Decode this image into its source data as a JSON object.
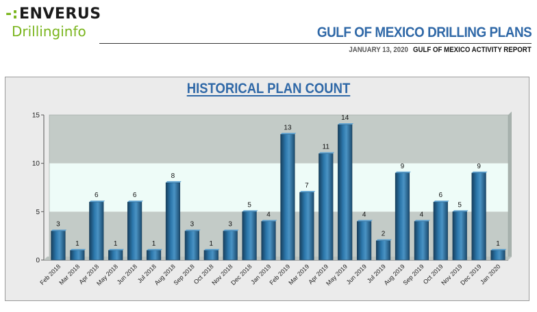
{
  "header": {
    "logo_line1": "ENVERUS",
    "logo_line2": "Drillinginfo",
    "title": "GULF OF MEXICO DRILLING PLANS",
    "date": "JANUARY 13, 2020",
    "report_name": "GULF OF MEXICO ACTIVITY REPORT"
  },
  "colors": {
    "brand_green": "#7ab51d",
    "title_blue": "#2f68a7",
    "bar_blue": "#2a6e9e",
    "band_dark": "#c3cbc7",
    "band_light": "#eefcf8"
  },
  "chart_data": {
    "type": "bar",
    "title": "HISTORICAL PLAN COUNT",
    "xlabel": "",
    "ylabel": "",
    "ylim": [
      0,
      15
    ],
    "yticks": [
      0,
      5,
      10,
      15
    ],
    "categories": [
      "Feb 2018",
      "Mar 2018",
      "Apr 2018",
      "May 2018",
      "Jun 2018",
      "Jul 2018",
      "Aug 2018",
      "Sep 2018",
      "Oct 2018",
      "Nov 2018",
      "Dec 2018",
      "Jan 2019",
      "Feb 2019",
      "Mar 2019",
      "Apr 2019",
      "May 2019",
      "Jun 2019",
      "Jul 2019",
      "Aug 2019",
      "Sep 2019",
      "Oct 2019",
      "Nov 2019",
      "Dec 2019",
      "Jan 2020"
    ],
    "values": [
      3,
      1,
      6,
      1,
      6,
      1,
      8,
      3,
      1,
      3,
      5,
      4,
      13,
      7,
      11,
      14,
      4,
      2,
      9,
      4,
      6,
      5,
      9,
      1
    ],
    "data_labels": true,
    "legend": "none"
  }
}
